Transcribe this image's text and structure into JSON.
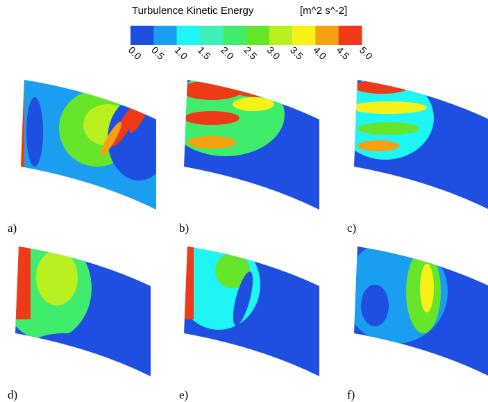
{
  "colorbar": {
    "title": "Turbulence Kinetic Energy",
    "unit": "[m^2 s^-2]",
    "colors": [
      "#1f4fe0",
      "#1a9ff0",
      "#1ff5f5",
      "#3ef0b8",
      "#40ec6c",
      "#66e52a",
      "#b8f020",
      "#f6f218",
      "#f7a012",
      "#ef3a18"
    ],
    "ticks": [
      "0.0",
      "0.5",
      "1.0",
      "1.5",
      "2.0",
      "2.5",
      "3.0",
      "3.5",
      "4.0",
      "4.5",
      "5.0"
    ]
  },
  "panels": [
    {
      "label": "a)"
    },
    {
      "label": "b)"
    },
    {
      "label": "c)"
    },
    {
      "label": "d)"
    },
    {
      "label": "e)"
    },
    {
      "label": "f)"
    }
  ]
}
